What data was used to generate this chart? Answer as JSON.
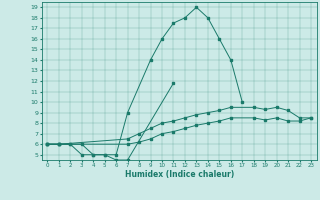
{
  "title": "",
  "xlabel": "Humidex (Indice chaleur)",
  "bg_color": "#cceae7",
  "line_color": "#1a7a6a",
  "xlim": [
    -0.5,
    23.5
  ],
  "ylim": [
    4.5,
    19.5
  ],
  "xticks": [
    0,
    1,
    2,
    3,
    4,
    5,
    6,
    7,
    8,
    9,
    10,
    11,
    12,
    13,
    14,
    15,
    16,
    17,
    18,
    19,
    20,
    21,
    22,
    23
  ],
  "yticks": [
    5,
    6,
    7,
    8,
    9,
    10,
    11,
    12,
    13,
    14,
    15,
    16,
    17,
    18,
    19
  ],
  "series": [
    {
      "x": [
        0,
        1,
        2,
        3,
        4,
        5,
        6,
        7,
        9,
        10,
        11,
        12,
        13,
        14,
        15,
        16,
        17
      ],
      "y": [
        6,
        6,
        6,
        5,
        5,
        5,
        5,
        9,
        14,
        16,
        17.5,
        18,
        19,
        18,
        16,
        14,
        10
      ]
    },
    {
      "x": [
        0,
        1,
        2,
        3,
        4,
        5,
        6,
        7,
        11
      ],
      "y": [
        6,
        6,
        6,
        6,
        5,
        5,
        4.5,
        4.5,
        11.8
      ]
    },
    {
      "x": [
        0,
        1,
        7,
        8,
        9,
        10,
        11,
        12,
        13,
        14,
        15,
        16,
        18,
        19,
        20,
        21,
        22,
        23
      ],
      "y": [
        6,
        6,
        6.5,
        7,
        7.5,
        8,
        8.2,
        8.5,
        8.8,
        9,
        9.2,
        9.5,
        9.5,
        9.3,
        9.5,
        9.2,
        8.5,
        8.5
      ]
    },
    {
      "x": [
        0,
        1,
        7,
        8,
        9,
        10,
        11,
        12,
        13,
        14,
        15,
        16,
        18,
        19,
        20,
        21,
        22,
        23
      ],
      "y": [
        6,
        6,
        6,
        6.2,
        6.5,
        7,
        7.2,
        7.5,
        7.8,
        8,
        8.2,
        8.5,
        8.5,
        8.3,
        8.5,
        8.2,
        8.2,
        8.5
      ]
    }
  ]
}
